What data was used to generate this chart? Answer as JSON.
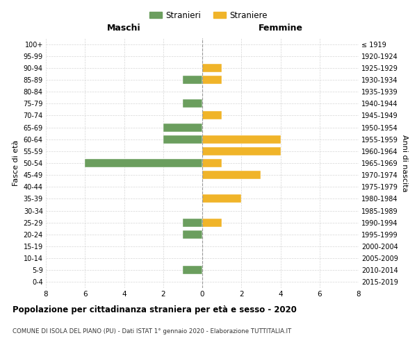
{
  "age_groups": [
    "100+",
    "95-99",
    "90-94",
    "85-89",
    "80-84",
    "75-79",
    "70-74",
    "65-69",
    "60-64",
    "55-59",
    "50-54",
    "45-49",
    "40-44",
    "35-39",
    "30-34",
    "25-29",
    "20-24",
    "15-19",
    "10-14",
    "5-9",
    "0-4"
  ],
  "birth_years": [
    "≤ 1919",
    "1920-1924",
    "1925-1929",
    "1930-1934",
    "1935-1939",
    "1940-1944",
    "1945-1949",
    "1950-1954",
    "1955-1959",
    "1960-1964",
    "1965-1969",
    "1970-1974",
    "1975-1979",
    "1980-1984",
    "1985-1989",
    "1990-1994",
    "1995-1999",
    "2000-2004",
    "2005-2009",
    "2010-2014",
    "2015-2019"
  ],
  "maschi_stranieri": [
    0,
    0,
    0,
    1,
    0,
    1,
    0,
    2,
    2,
    0,
    6,
    0,
    0,
    0,
    0,
    1,
    1,
    0,
    0,
    1,
    0
  ],
  "femmine_straniere": [
    0,
    0,
    1,
    1,
    0,
    0,
    1,
    0,
    4,
    4,
    1,
    3,
    0,
    2,
    0,
    1,
    0,
    0,
    0,
    0,
    0
  ],
  "color_maschi": "#6b9e5e",
  "color_femmine": "#f0b429",
  "xlim": 8,
  "title": "Popolazione per cittadinanza straniera per età e sesso - 2020",
  "subtitle": "COMUNE DI ISOLA DEL PIANO (PU) - Dati ISTAT 1° gennaio 2020 - Elaborazione TUTTITALIA.IT",
  "ylabel_left": "Fasce di età",
  "ylabel_right": "Anni di nascita",
  "xlabel_left": "Maschi",
  "xlabel_right": "Femmine",
  "legend_stranieri": "Stranieri",
  "legend_straniere": "Straniere",
  "bg_color": "#ffffff",
  "grid_color": "#cccccc"
}
